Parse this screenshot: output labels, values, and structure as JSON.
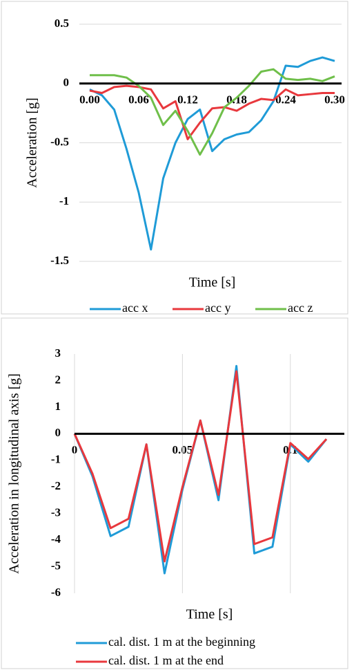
{
  "chart_data": [
    {
      "type": "line",
      "xlabel": "Time [s]",
      "ylabel": "Acceleration [g]",
      "x": [
        0,
        0.015,
        0.03,
        0.045,
        0.06,
        0.075,
        0.09,
        0.105,
        0.12,
        0.135,
        0.15,
        0.165,
        0.18,
        0.195,
        0.21,
        0.225,
        0.24,
        0.255,
        0.27,
        0.285,
        0.3
      ],
      "series": [
        {
          "name": "acc x",
          "color": "#1f9bd7",
          "values": [
            -0.05,
            -0.1,
            -0.22,
            -0.55,
            -0.92,
            -1.4,
            -0.8,
            -0.5,
            -0.3,
            -0.22,
            -0.57,
            -0.47,
            -0.43,
            -0.41,
            -0.31,
            -0.15,
            0.15,
            0.14,
            0.19,
            0.22,
            0.19
          ]
        },
        {
          "name": "acc y",
          "color": "#e8383d",
          "values": [
            -0.06,
            -0.08,
            -0.03,
            -0.02,
            -0.03,
            -0.05,
            -0.21,
            -0.15,
            -0.47,
            -0.33,
            -0.21,
            -0.2,
            -0.23,
            -0.17,
            -0.13,
            -0.14,
            -0.05,
            -0.1,
            -0.09,
            -0.08,
            -0.08
          ]
        },
        {
          "name": "acc z",
          "color": "#6fbf4a",
          "values": [
            0.07,
            0.07,
            0.07,
            0.05,
            -0.02,
            -0.12,
            -0.35,
            -0.23,
            -0.4,
            -0.6,
            -0.42,
            -0.2,
            -0.12,
            -0.02,
            0.1,
            0.12,
            0.04,
            0.03,
            0.04,
            0.02,
            0.06
          ]
        }
      ],
      "xlim": [
        0,
        0.3
      ],
      "xticks": [
        {
          "value": 0,
          "label": "0.00"
        },
        {
          "value": 0.06,
          "label": "0.06"
        },
        {
          "value": 0.12,
          "label": "0.12"
        },
        {
          "value": 0.18,
          "label": "0.18"
        },
        {
          "value": 0.24,
          "label": "0.24"
        },
        {
          "value": 0.3,
          "label": "0.30"
        }
      ],
      "ylim": [
        -1.5,
        0.5
      ],
      "yticks": [
        0.5,
        0,
        -0.5,
        -1,
        -1.5
      ],
      "grid": "y",
      "legend": "bottom"
    },
    {
      "type": "line",
      "xlabel": "Time [s]",
      "ylabel": "Acceleration in longitudinal axis [g]",
      "x": [
        0,
        0.0083,
        0.0167,
        0.025,
        0.0333,
        0.0417,
        0.05,
        0.0583,
        0.0667,
        0.075,
        0.0833,
        0.0917,
        0.1,
        0.1083,
        0.1167
      ],
      "series": [
        {
          "name": "cal. dist. 1 m at the beginning",
          "color": "#1f9bd7",
          "values": [
            0,
            -1.6,
            -3.85,
            -3.5,
            -0.4,
            -5.25,
            -2.1,
            0.5,
            -2.5,
            2.55,
            -4.5,
            -4.25,
            -0.4,
            -1.05,
            -0.2
          ]
        },
        {
          "name": "cal. dist. 1 m at the end",
          "color": "#e8383d",
          "values": [
            0,
            -1.5,
            -3.55,
            -3.2,
            -0.4,
            -4.8,
            -2.0,
            0.5,
            -2.3,
            2.35,
            -4.15,
            -3.9,
            -0.35,
            -0.95,
            -0.2
          ]
        }
      ],
      "xlim": [
        0,
        0.125
      ],
      "xticks": [
        0,
        0.05,
        0.1
      ],
      "ylim": [
        -6,
        3
      ],
      "yticks": [
        3,
        2,
        1,
        0,
        -1,
        -2,
        -3,
        -4,
        -5,
        -6
      ],
      "grid": "x",
      "legend": "bottom"
    }
  ]
}
